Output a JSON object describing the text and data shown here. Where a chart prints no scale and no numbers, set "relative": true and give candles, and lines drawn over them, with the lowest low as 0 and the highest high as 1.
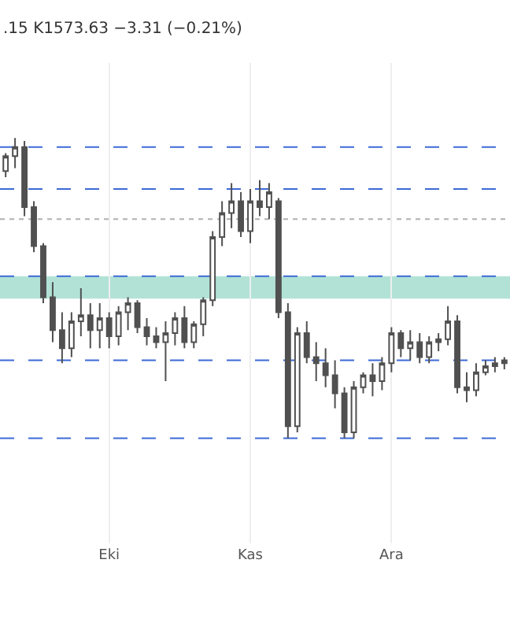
{
  "chart_data": {
    "type": "candlestick",
    "subtitle": ".15 K1573.63 −3.31 (−0.21%)",
    "relative": true,
    "color": "#505050",
    "grid": "x",
    "categories": [
      null,
      null,
      null,
      null,
      null,
      null,
      null,
      null,
      null,
      null,
      null,
      "Eki",
      null,
      null,
      null,
      null,
      null,
      null,
      null,
      null,
      null,
      null,
      null,
      null,
      null,
      null,
      "Kas",
      null,
      null,
      null,
      null,
      null,
      null,
      null,
      null,
      null,
      null,
      null,
      null,
      null,
      null,
      "Ara",
      null,
      null,
      null,
      null,
      null,
      null,
      null,
      null,
      null,
      null,
      null,
      null
    ],
    "ohlc": [
      [
        0.89,
        0.95,
        0.87,
        0.94
      ],
      [
        0.94,
        1.0,
        0.9,
        0.97
      ],
      [
        0.97,
        0.99,
        0.74,
        0.77
      ],
      [
        0.77,
        0.79,
        0.62,
        0.64
      ],
      [
        0.64,
        0.65,
        0.45,
        0.47
      ],
      [
        0.47,
        0.52,
        0.32,
        0.36
      ],
      [
        0.36,
        0.42,
        0.25,
        0.3
      ],
      [
        0.3,
        0.42,
        0.27,
        0.39
      ],
      [
        0.39,
        0.5,
        0.34,
        0.41
      ],
      [
        0.41,
        0.45,
        0.3,
        0.36
      ],
      [
        0.36,
        0.45,
        0.3,
        0.4
      ],
      [
        0.4,
        0.42,
        0.3,
        0.34
      ],
      [
        0.34,
        0.44,
        0.31,
        0.42
      ],
      [
        0.42,
        0.47,
        0.36,
        0.45
      ],
      [
        0.45,
        0.46,
        0.35,
        0.37
      ],
      [
        0.37,
        0.4,
        0.31,
        0.34
      ],
      [
        0.34,
        0.37,
        0.3,
        0.32
      ],
      [
        0.32,
        0.39,
        0.19,
        0.35
      ],
      [
        0.35,
        0.42,
        0.31,
        0.4
      ],
      [
        0.4,
        0.44,
        0.3,
        0.32
      ],
      [
        0.32,
        0.39,
        0.3,
        0.38
      ],
      [
        0.38,
        0.47,
        0.34,
        0.46
      ],
      [
        0.46,
        0.69,
        0.44,
        0.67
      ],
      [
        0.67,
        0.79,
        0.64,
        0.75
      ],
      [
        0.75,
        0.85,
        0.7,
        0.79
      ],
      [
        0.79,
        0.82,
        0.67,
        0.69
      ],
      [
        0.69,
        0.83,
        0.65,
        0.79
      ],
      [
        0.79,
        0.86,
        0.74,
        0.77
      ],
      [
        0.77,
        0.85,
        0.73,
        0.82
      ],
      [
        0.79,
        0.8,
        0.4,
        0.42
      ],
      [
        0.42,
        0.45,
        0.0,
        0.04
      ],
      [
        0.04,
        0.37,
        0.02,
        0.35
      ],
      [
        0.35,
        0.39,
        0.25,
        0.27
      ],
      [
        0.27,
        0.32,
        0.19,
        0.25
      ],
      [
        0.25,
        0.3,
        0.17,
        0.21
      ],
      [
        0.21,
        0.26,
        0.1,
        0.15
      ],
      [
        0.15,
        0.17,
        0.0,
        0.02
      ],
      [
        0.02,
        0.19,
        0.0,
        0.17
      ],
      [
        0.17,
        0.22,
        0.15,
        0.21
      ],
      [
        0.21,
        0.25,
        0.14,
        0.19
      ],
      [
        0.19,
        0.27,
        0.16,
        0.25
      ],
      [
        0.25,
        0.37,
        0.22,
        0.35
      ],
      [
        0.35,
        0.36,
        0.27,
        0.3
      ],
      [
        0.3,
        0.36,
        0.26,
        0.32
      ],
      [
        0.32,
        0.35,
        0.25,
        0.27
      ],
      [
        0.27,
        0.34,
        0.25,
        0.32
      ],
      [
        0.32,
        0.35,
        0.29,
        0.33
      ],
      [
        0.33,
        0.44,
        0.31,
        0.39
      ],
      [
        0.39,
        0.41,
        0.15,
        0.17
      ],
      [
        0.17,
        0.22,
        0.12,
        0.16
      ],
      [
        0.16,
        0.25,
        0.14,
        0.22
      ],
      [
        0.22,
        0.26,
        0.21,
        0.24
      ],
      [
        0.24,
        0.27,
        0.22,
        0.25
      ],
      [
        0.25,
        0.27,
        0.23,
        0.26
      ]
    ],
    "ref_lines": [
      {
        "axis": "y",
        "value": 0.97,
        "color": "#3c6ad6",
        "line_style": "dashed"
      },
      {
        "axis": "y",
        "value": 0.83,
        "color": "#3c6ad6",
        "line_style": "dashed"
      },
      {
        "axis": "y",
        "value": 0.73,
        "color": "#b0b0b0",
        "line_style": "dotted"
      },
      {
        "axis": "y",
        "value": 0.54,
        "color": "#3c6ad6",
        "line_style": "dashed"
      },
      {
        "axis": "y",
        "value": 0.26,
        "color": "#3c6ad6",
        "line_style": "dashed"
      },
      {
        "axis": "y",
        "value": 0.0,
        "color": "#3c6ad6",
        "line_style": "dashed"
      }
    ],
    "bands": [
      {
        "axis": "y",
        "from": 0.465,
        "to": 0.54,
        "color": "#b2e2d6"
      }
    ]
  }
}
